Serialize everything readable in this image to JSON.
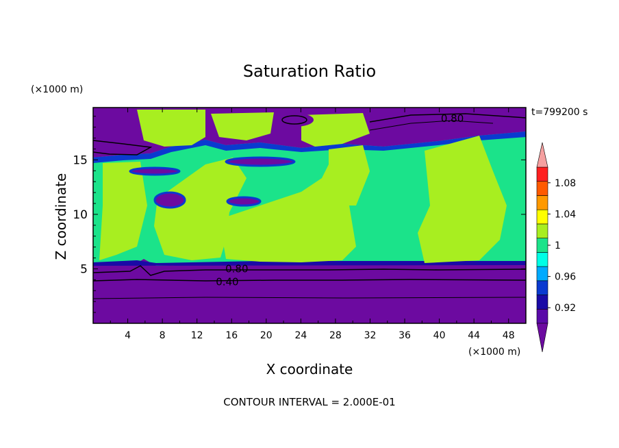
{
  "chart_data": {
    "type": "heatmap",
    "title": "Saturation Ratio",
    "xlabel": "X coordinate",
    "ylabel": "Z coordinate",
    "x_unit": "(×1000 m)",
    "y_unit": "(×1000 m)",
    "time_label": "t=799200 s",
    "footer": "CONTOUR INTERVAL = 2.000E-01",
    "xlim": [
      0,
      50
    ],
    "ylim": [
      0,
      19.8
    ],
    "x_ticks": [
      4,
      8,
      12,
      16,
      20,
      24,
      28,
      32,
      36,
      40,
      44,
      48
    ],
    "y_ticks": [
      5,
      10,
      15
    ],
    "contour_labels": [
      {
        "text": "0.80",
        "x": 41.5,
        "y": 18.8
      },
      {
        "text": "0.80",
        "x": 16.6,
        "y": 5.0
      },
      {
        "text": "0.40",
        "x": 15.5,
        "y": 3.8
      }
    ],
    "colorbar": {
      "labels": [
        "1.08",
        "1.04",
        "1",
        "0.96",
        "0.92"
      ],
      "label_values": [
        1.08,
        1.04,
        1.0,
        0.96,
        0.92
      ],
      "levels": [
        0.9,
        0.92,
        0.94,
        0.96,
        0.98,
        1.0,
        1.02,
        1.04,
        1.06,
        1.08,
        1.1
      ],
      "colors": [
        "#5a0aa8",
        "#1a0aa6",
        "#0a3ad0",
        "#00aaff",
        "#00ffe6",
        "#1be38a",
        "#a8ee20",
        "#ffff00",
        "#ff9900",
        "#ff5a00",
        "#ff2020"
      ],
      "under_color": "#6c0aa0",
      "over_color": "#f5a0a0"
    }
  }
}
